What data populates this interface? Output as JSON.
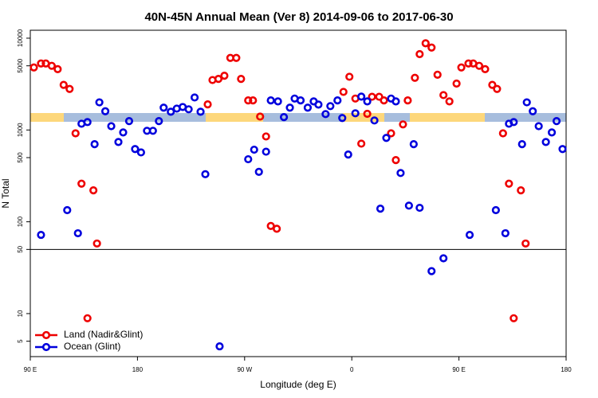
{
  "chart_data": {
    "type": "scatter",
    "title": "40N-45N Annual Mean (Ver 8)   2014-09-06 to 2017-06-30",
    "x_label": "Longitude (deg E)",
    "y_label": "N Total",
    "log_y": true,
    "xlim": [
      90,
      540
    ],
    "ylim": [
      3.4,
      12200
    ],
    "xticks": [
      {
        "value": 90,
        "label": "90 E"
      },
      180,
      {
        "value": 270,
        "label": "90 W"
      },
      {
        "value": 360,
        "label": "0"
      },
      {
        "value": 450,
        "label": "90 E"
      },
      {
        "value": 540,
        "label": "180"
      }
    ],
    "yticks": [
      5,
      10,
      50,
      100,
      500,
      1000,
      5000,
      10000
    ],
    "reference_line": 50,
    "legend": "bottom-left",
    "series": [
      {
        "name": "Land (Nadir&Glint)",
        "color": "#ee0000",
        "x": [
          93,
          99,
          103,
          108,
          113,
          118,
          123,
          128,
          133,
          138,
          143,
          146,
          239,
          243,
          248,
          253,
          258,
          263,
          267,
          273,
          277,
          283,
          288,
          292,
          297,
          353,
          358,
          363,
          368,
          373,
          377,
          383,
          387,
          393,
          397,
          403,
          407,
          413,
          417,
          422,
          427,
          432,
          437,
          442,
          448,
          452,
          458,
          462,
          467,
          472,
          478,
          482,
          487,
          492,
          496,
          502,
          506
        ],
        "values": [
          4800,
          5300,
          5300,
          5000,
          4600,
          3100,
          2800,
          920,
          260,
          8.9,
          220,
          58,
          1900,
          3500,
          3600,
          3900,
          6100,
          6100,
          3600,
          2100,
          2100,
          1400,
          850,
          90,
          84,
          2600,
          3800,
          2200,
          710,
          1500,
          2300,
          2300,
          2100,
          920,
          470,
          1150,
          2100,
          3700,
          6700,
          8800,
          7900,
          4000,
          2400,
          2050,
          3200,
          4800,
          5300,
          5300,
          5000,
          4600,
          3100,
          2800,
          920,
          260,
          8.9,
          220,
          58
        ]
      },
      {
        "name": "Ocean (Glint)",
        "color": "#0000dd",
        "x": [
          99,
          121,
          130,
          133,
          138,
          144,
          148,
          153,
          158,
          164,
          168,
          173,
          178,
          183,
          188,
          193,
          198,
          202,
          208,
          213,
          218,
          223,
          228,
          233,
          237,
          249,
          273,
          278,
          282,
          288,
          292,
          298,
          303,
          308,
          312,
          317,
          323,
          328,
          332,
          338,
          342,
          348,
          352,
          357,
          363,
          368,
          373,
          379,
          384,
          389,
          393,
          397,
          401,
          408,
          412,
          417,
          427,
          437,
          459,
          481,
          489,
          492,
          496,
          503,
          507,
          512,
          517,
          523,
          528,
          532,
          537
        ],
        "values": [
          72,
          134,
          75,
          1170,
          1220,
          700,
          2000,
          1600,
          1100,
          740,
          940,
          1250,
          620,
          570,
          980,
          980,
          1250,
          1750,
          1580,
          1710,
          1780,
          1680,
          2260,
          1580,
          330,
          4.4,
          480,
          610,
          350,
          580,
          2100,
          2050,
          1380,
          1750,
          2200,
          2100,
          1750,
          2050,
          1890,
          1490,
          1820,
          2100,
          1350,
          540,
          1520,
          2310,
          2050,
          1270,
          139,
          820,
          2200,
          2050,
          340,
          150,
          700,
          142,
          29,
          40,
          72,
          134,
          75,
          1170,
          1220,
          700,
          2000,
          1600,
          1100,
          740,
          940,
          1250,
          620
        ]
      }
    ]
  }
}
